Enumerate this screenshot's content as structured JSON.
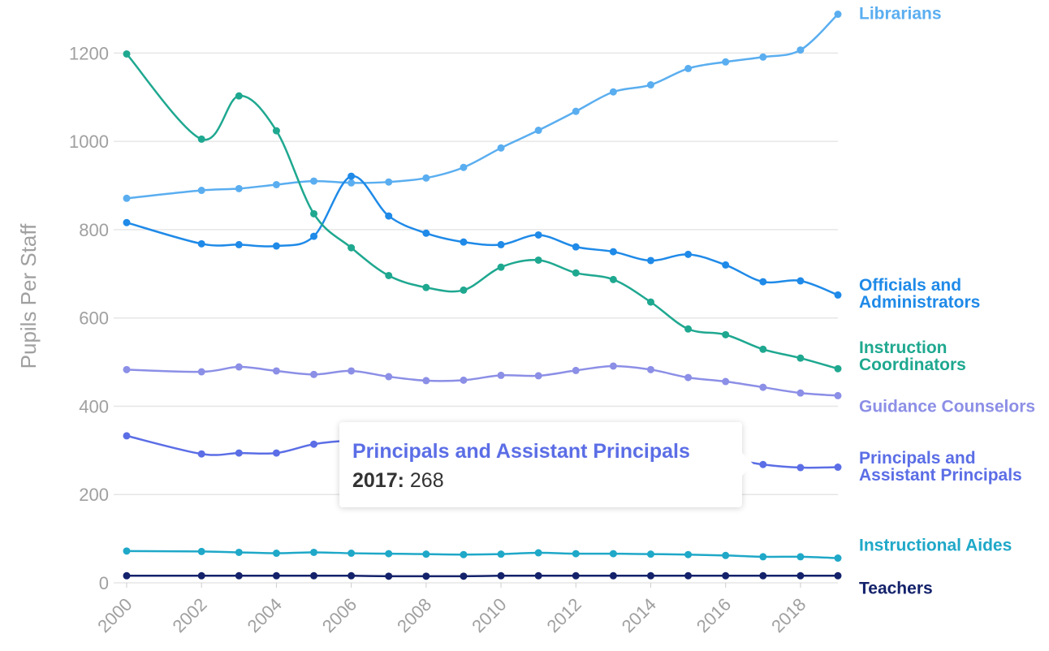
{
  "chart_data": {
    "type": "line",
    "y_label": "Pupils Per Staff",
    "x": [
      2000,
      2002,
      2003,
      2004,
      2005,
      2006,
      2007,
      2008,
      2009,
      2010,
      2011,
      2012,
      2013,
      2014,
      2015,
      2016,
      2017,
      2018,
      2019
    ],
    "xlim": [
      2000,
      2019
    ],
    "xticks": [
      2000,
      2002,
      2004,
      2006,
      2008,
      2010,
      2012,
      2014,
      2016,
      2018
    ],
    "ylim": [
      0,
      1300
    ],
    "yticks": [
      0,
      200,
      400,
      600,
      800,
      1000,
      1200
    ],
    "grid": true,
    "series": [
      {
        "name": "Librarians",
        "color": "#5aaef0",
        "values": [
          871,
          889,
          893,
          902,
          910,
          906,
          908,
          917,
          941,
          985,
          1025,
          1068,
          1112,
          1128,
          1165,
          1180,
          1191,
          1207,
          1288
        ]
      },
      {
        "name": "Officials and Administrators",
        "color": "#1f8ae8",
        "values": [
          816,
          768,
          766,
          763,
          785,
          921,
          831,
          792,
          772,
          766,
          788,
          761,
          750,
          730,
          744,
          720,
          682,
          684,
          652
        ]
      },
      {
        "name": "Instruction Coordinators",
        "color": "#1fa890",
        "values": [
          1198,
          1005,
          1103,
          1024,
          836,
          759,
          696,
          669,
          663,
          715,
          731,
          702,
          687,
          636,
          575,
          562,
          529,
          509,
          485
        ]
      },
      {
        "name": "Guidance Counselors",
        "color": "#8c8fe6",
        "values": [
          483,
          478,
          489,
          480,
          472,
          480,
          467,
          458,
          459,
          470,
          469,
          481,
          491,
          483,
          465,
          456,
          443,
          430,
          424
        ]
      },
      {
        "name": "Principals and Assistant Principals",
        "color": "#5b6ee6",
        "values": [
          333,
          292,
          294,
          294,
          314,
          322,
          318,
          312,
          308,
          305,
          303,
          300,
          298,
          294,
          290,
          282,
          268,
          261,
          262
        ]
      },
      {
        "name": "Instructional Aides",
        "color": "#1fa8c8",
        "values": [
          72,
          71,
          69,
          67,
          69,
          67,
          66,
          65,
          64,
          65,
          68,
          66,
          66,
          65,
          64,
          62,
          59,
          59,
          56
        ]
      },
      {
        "name": "Teachers",
        "color": "#14226b",
        "values": [
          16,
          16,
          16,
          16,
          16,
          16,
          15,
          15,
          15,
          16,
          16,
          16,
          16,
          16,
          16,
          16,
          16,
          16,
          16
        ]
      }
    ],
    "tooltip": {
      "label": "2017:"
    }
  }
}
